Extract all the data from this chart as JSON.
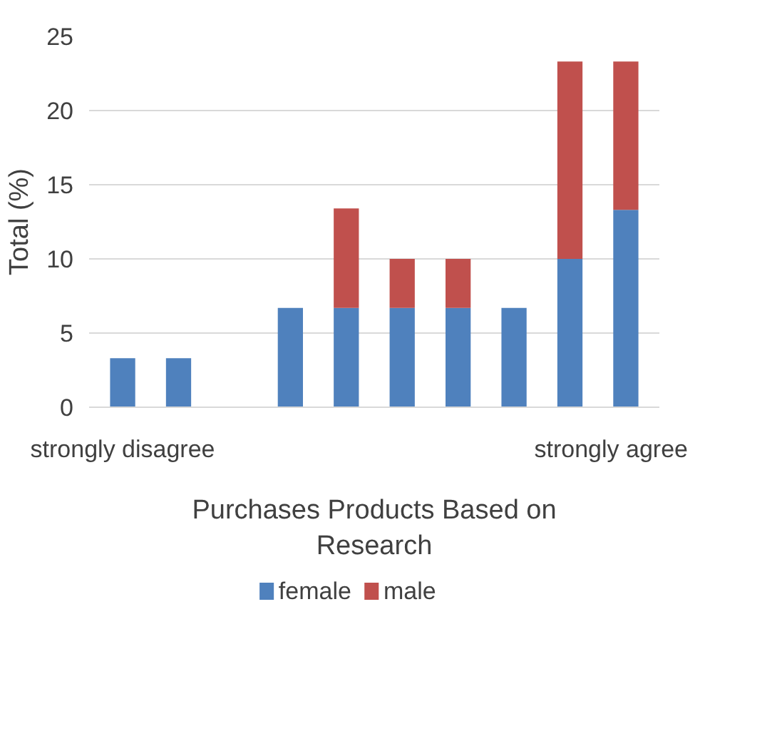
{
  "chart_data": {
    "type": "bar",
    "stacked": true,
    "xlabel": "Purchases Products Based on Research",
    "ylabel": "Total (%)",
    "categories": [
      "strongly disagree",
      null,
      null,
      null,
      null,
      null,
      null,
      null,
      null,
      "strongly agree"
    ],
    "series": [
      {
        "name": "female",
        "color": "#4f81bd",
        "values": [
          3.3,
          3.3,
          0,
          6.7,
          6.7,
          6.7,
          6.7,
          6.7,
          10,
          13.3
        ]
      },
      {
        "name": "male",
        "color": "#c0504d",
        "values": [
          0,
          0,
          0,
          0,
          6.7,
          3.3,
          3.3,
          0,
          13.3,
          10
        ]
      }
    ],
    "ylim": [
      0,
      25
    ],
    "yticks": [
      0,
      5,
      10,
      15,
      20,
      25
    ],
    "grid": "y",
    "legend": "bottom"
  }
}
